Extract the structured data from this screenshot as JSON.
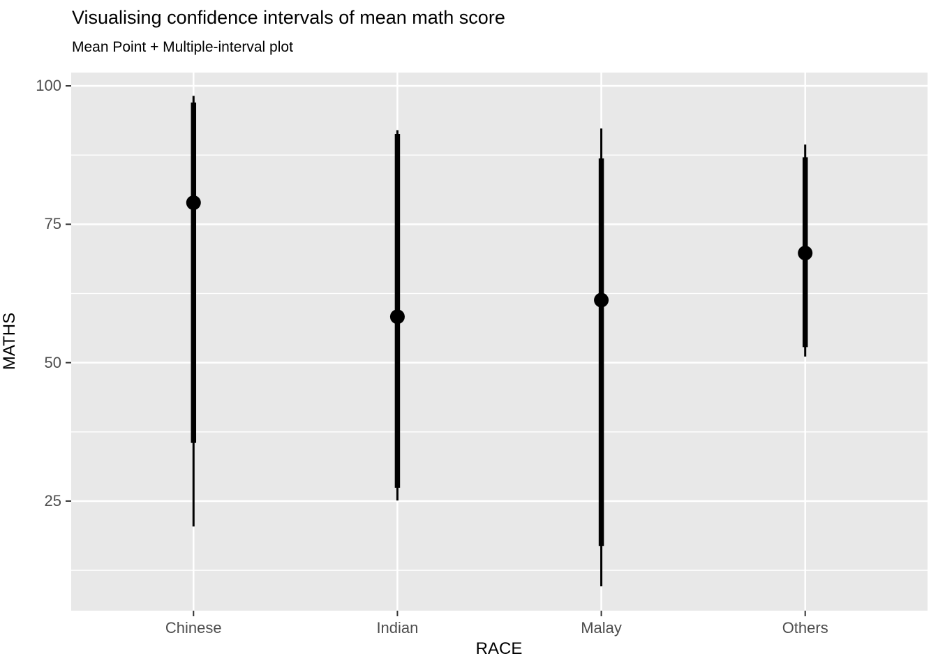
{
  "chart_data": {
    "type": "pointinterval",
    "title": "Visualising confidence intervals of mean math score",
    "subtitle": "Mean Point + Multiple-interval plot",
    "xlabel": "RACE",
    "ylabel": "MATHS",
    "categories": [
      "Chinese",
      "Indian",
      "Malay",
      "Others"
    ],
    "series": [
      {
        "category": "Chinese",
        "mean": 78.9,
        "inner_interval": [
          35.5,
          97.0
        ],
        "outer_interval": [
          20.4,
          98.2
        ]
      },
      {
        "category": "Indian",
        "mean": 58.3,
        "inner_interval": [
          27.4,
          91.3
        ],
        "outer_interval": [
          25.1,
          92.0
        ]
      },
      {
        "category": "Malay",
        "mean": 61.3,
        "inner_interval": [
          16.9,
          86.9
        ],
        "outer_interval": [
          9.6,
          92.3
        ]
      },
      {
        "category": "Others",
        "mean": 69.8,
        "inner_interval": [
          52.8,
          87.1
        ],
        "outer_interval": [
          51.1,
          89.4
        ]
      }
    ],
    "y_ticks": [
      25,
      50,
      75,
      100
    ],
    "y_minor_gridlines": [
      12.5,
      37.5,
      62.5,
      87.5
    ],
    "ylim": [
      5.2,
      102.4
    ],
    "grid": true,
    "legend": false,
    "colors": {
      "panel_bg": "#e8e8e8",
      "grid": "#ffffff",
      "data": "#000000",
      "tick_label": "#4d4d4d",
      "tick_mark": "#333333",
      "text": "#000000"
    }
  }
}
